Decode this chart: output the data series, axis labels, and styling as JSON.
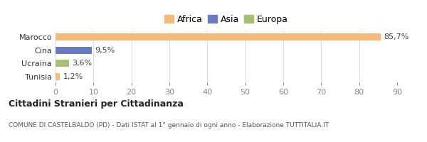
{
  "categories": [
    "Tunisia",
    "Ucraina",
    "Cina",
    "Marocco"
  ],
  "values": [
    1.2,
    3.6,
    9.5,
    85.7
  ],
  "bar_colors": [
    "#f5b97a",
    "#a8c070",
    "#6b7bbf",
    "#f5b97a"
  ],
  "legend_entries": [
    {
      "label": "Africa",
      "color": "#f5b97a"
    },
    {
      "label": "Asia",
      "color": "#6b7bbf"
    },
    {
      "label": "Europa",
      "color": "#a8c070"
    }
  ],
  "value_labels": [
    "1,2%",
    "3,6%",
    "9,5%",
    "85,7%"
  ],
  "xlim": [
    0,
    90
  ],
  "xticks": [
    0,
    10,
    20,
    30,
    40,
    50,
    60,
    70,
    80,
    90
  ],
  "title": "Cittadini Stranieri per Cittadinanza",
  "subtitle": "COMUNE DI CASTELBALDO (PD) - Dati ISTAT al 1° gennaio di ogni anno - Elaborazione TUTTITALIA.IT",
  "background_color": "#ffffff",
  "bar_height": 0.55,
  "grid_color": "#dddddd"
}
